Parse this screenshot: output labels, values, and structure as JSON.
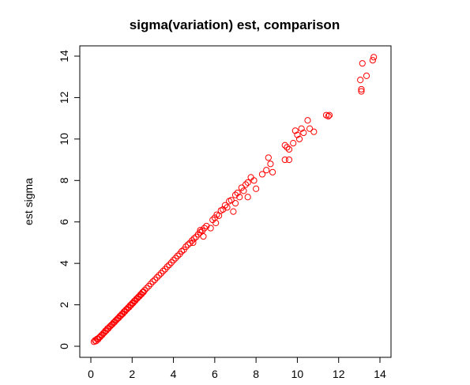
{
  "chart_data": {
    "type": "scatter",
    "title": "sigma(variation) est, comparison",
    "xlabel": "",
    "ylabel": "est sigma",
    "xlim": [
      0,
      14
    ],
    "ylim": [
      0,
      14
    ],
    "x_ticks": [
      0,
      2,
      4,
      6,
      8,
      10,
      12,
      14
    ],
    "y_ticks": [
      0,
      2,
      4,
      6,
      8,
      10,
      12,
      14
    ],
    "x_tick_labels": [
      "0",
      "2",
      "4",
      "6",
      "8",
      "10",
      "12",
      "14"
    ],
    "y_tick_labels": [
      "0",
      "2",
      "4",
      "6",
      "8",
      "10",
      "12",
      "14"
    ],
    "grid": false,
    "marker": "open-circle",
    "point_color": "#ff0000",
    "series": [
      {
        "points": [
          [
            0.15,
            0.22
          ],
          [
            0.2,
            0.28
          ],
          [
            0.25,
            0.25
          ],
          [
            0.3,
            0.35
          ],
          [
            0.35,
            0.33
          ],
          [
            0.4,
            0.42
          ],
          [
            0.45,
            0.45
          ],
          [
            0.5,
            0.52
          ],
          [
            0.55,
            0.55
          ],
          [
            0.6,
            0.62
          ],
          [
            0.65,
            0.66
          ],
          [
            0.7,
            0.74
          ],
          [
            0.75,
            0.76
          ],
          [
            0.8,
            0.85
          ],
          [
            0.85,
            0.86
          ],
          [
            0.9,
            0.93
          ],
          [
            0.95,
            0.98
          ],
          [
            1.0,
            1.03
          ],
          [
            1.05,
            1.07
          ],
          [
            1.1,
            1.14
          ],
          [
            1.15,
            1.17
          ],
          [
            1.2,
            1.24
          ],
          [
            1.25,
            1.28
          ],
          [
            1.3,
            1.34
          ],
          [
            1.35,
            1.37
          ],
          [
            1.4,
            1.45
          ],
          [
            1.45,
            1.48
          ],
          [
            1.5,
            1.55
          ],
          [
            1.55,
            1.57
          ],
          [
            1.6,
            1.66
          ],
          [
            1.65,
            1.68
          ],
          [
            1.7,
            1.76
          ],
          [
            1.75,
            1.79
          ],
          [
            1.8,
            1.86
          ],
          [
            1.85,
            1.88
          ],
          [
            1.9,
            1.97
          ],
          [
            1.95,
            1.99
          ],
          [
            2.0,
            2.07
          ],
          [
            2.05,
            2.09
          ],
          [
            2.1,
            2.18
          ],
          [
            2.15,
            2.2
          ],
          [
            2.2,
            2.28
          ],
          [
            2.25,
            2.31
          ],
          [
            2.3,
            2.38
          ],
          [
            2.35,
            2.41
          ],
          [
            2.4,
            2.49
          ],
          [
            2.45,
            2.51
          ],
          [
            2.5,
            2.6
          ],
          [
            2.55,
            2.62
          ],
          [
            2.6,
            2.7
          ],
          [
            2.7,
            2.8
          ],
          [
            2.8,
            2.9
          ],
          [
            2.9,
            3.01
          ],
          [
            3.0,
            3.12
          ],
          [
            3.1,
            3.21
          ],
          [
            3.2,
            3.32
          ],
          [
            3.3,
            3.42
          ],
          [
            3.4,
            3.52
          ],
          [
            3.5,
            3.63
          ],
          [
            3.6,
            3.72
          ],
          [
            3.7,
            3.84
          ],
          [
            3.8,
            3.93
          ],
          [
            3.9,
            4.04
          ],
          [
            4.0,
            4.15
          ],
          [
            4.1,
            4.25
          ],
          [
            4.2,
            4.36
          ],
          [
            4.3,
            4.45
          ],
          [
            4.4,
            4.58
          ],
          [
            4.5,
            4.66
          ],
          [
            4.6,
            4.8
          ],
          [
            4.7,
            4.9
          ],
          [
            4.8,
            4.98
          ],
          [
            4.9,
            5.1
          ],
          [
            5.0,
            5.2
          ],
          [
            5.1,
            5.28
          ],
          [
            5.2,
            5.4
          ],
          [
            5.3,
            5.5
          ],
          [
            5.4,
            5.58
          ],
          [
            5.5,
            5.7
          ],
          [
            5.6,
            5.8
          ],
          [
            5.3,
            5.6
          ],
          [
            5.45,
            5.3
          ],
          [
            4.95,
            5.0
          ],
          [
            5.8,
            5.7
          ],
          [
            5.9,
            6.1
          ],
          [
            6.0,
            6.2
          ],
          [
            6.1,
            6.35
          ],
          [
            6.2,
            6.3
          ],
          [
            6.05,
            5.95
          ],
          [
            6.3,
            6.55
          ],
          [
            6.4,
            6.6
          ],
          [
            6.5,
            6.8
          ],
          [
            6.6,
            6.7
          ],
          [
            6.7,
            7.0
          ],
          [
            6.8,
            7.05
          ],
          [
            7.0,
            7.3
          ],
          [
            7.1,
            7.4
          ],
          [
            7.2,
            7.2
          ],
          [
            7.3,
            7.65
          ],
          [
            7.4,
            7.5
          ],
          [
            7.5,
            7.8
          ],
          [
            7.6,
            7.9
          ],
          [
            7.75,
            8.15
          ],
          [
            7.9,
            8.0
          ],
          [
            7.0,
            6.9
          ],
          [
            6.9,
            6.5
          ],
          [
            7.6,
            7.2
          ],
          [
            8.0,
            7.6
          ],
          [
            8.3,
            8.3
          ],
          [
            8.5,
            8.5
          ],
          [
            8.6,
            9.1
          ],
          [
            8.7,
            8.8
          ],
          [
            8.8,
            8.4
          ],
          [
            9.4,
            9.7
          ],
          [
            9.5,
            9.6
          ],
          [
            9.6,
            9.5
          ],
          [
            9.4,
            9.0
          ],
          [
            9.6,
            9.0
          ],
          [
            9.8,
            9.8
          ],
          [
            10.0,
            10.2
          ],
          [
            9.9,
            10.4
          ],
          [
            10.1,
            10.0
          ],
          [
            10.2,
            10.5
          ],
          [
            10.3,
            10.3
          ],
          [
            10.5,
            10.9
          ],
          [
            10.6,
            10.5
          ],
          [
            10.8,
            10.35
          ],
          [
            11.4,
            11.15
          ],
          [
            11.5,
            11.1
          ],
          [
            11.55,
            11.15
          ],
          [
            13.1,
            12.3
          ],
          [
            13.05,
            12.85
          ],
          [
            13.1,
            12.4
          ],
          [
            13.15,
            13.65
          ],
          [
            13.35,
            13.05
          ],
          [
            13.65,
            13.8
          ],
          [
            13.7,
            13.95
          ]
        ]
      }
    ]
  }
}
